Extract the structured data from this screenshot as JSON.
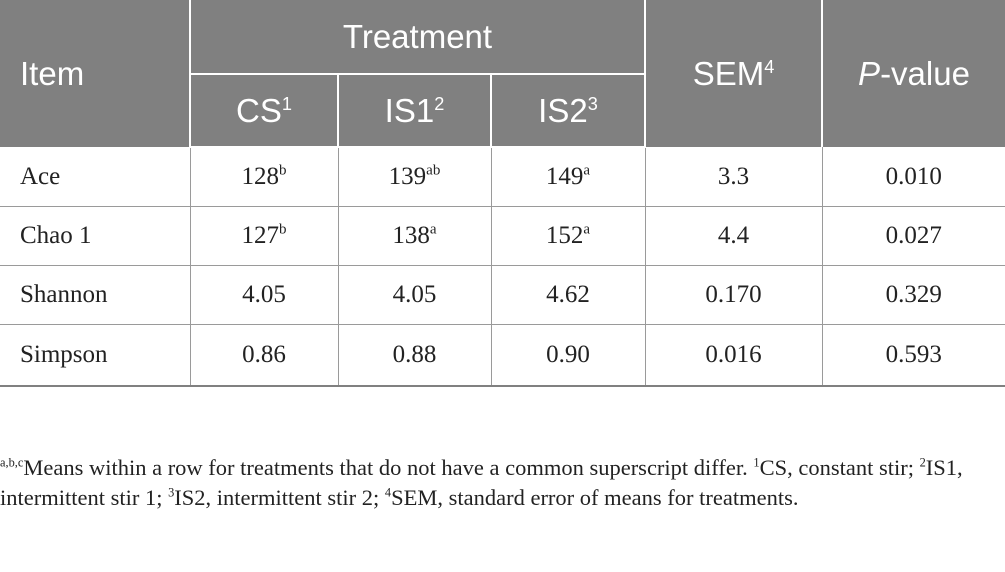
{
  "header": {
    "item": "Item",
    "treatment": "Treatment",
    "sem": "SEM",
    "sem_sup": "4",
    "pvalue_italic": "P",
    "pvalue_rest": "-value",
    "cs": "CS",
    "cs_sup": "1",
    "is1": "IS1",
    "is1_sup": "2",
    "is2": "IS2",
    "is2_sup": "3"
  },
  "rows": [
    {
      "name": "Ace",
      "cs": "128",
      "cs_sup": "b",
      "is1": "139",
      "is1_sup": "ab",
      "is2": "149",
      "is2_sup": "a",
      "sem": "3.3",
      "p": "0.010"
    },
    {
      "name": "Chao 1",
      "cs": "127",
      "cs_sup": "b",
      "is1": "138",
      "is1_sup": "a",
      "is2": "152",
      "is2_sup": "a",
      "sem": "4.4",
      "p": "0.027"
    },
    {
      "name": "Shannon",
      "cs": "4.05",
      "cs_sup": "",
      "is1": "4.05",
      "is1_sup": "",
      "is2": "4.62",
      "is2_sup": "",
      "sem": "0.170",
      "p": "0.329"
    },
    {
      "name": "Simpson",
      "cs": "0.86",
      "cs_sup": "",
      "is1": "0.88",
      "is1_sup": "",
      "is2": "0.90",
      "is2_sup": "",
      "sem": "0.016",
      "p": "0.593"
    }
  ],
  "footnote": {
    "s0": "a,b,c",
    "t0": "Means within a row for treatments that do not have a common superscript differ. ",
    "s1": "1",
    "t1": "CS, constant stir; ",
    "s2": "2",
    "t2": "IS1, intermittent stir 1; ",
    "s3": "3",
    "t3": "IS2, intermittent stir 2; ",
    "s4": "4",
    "t4": "SEM, standard error of means for treatments."
  }
}
